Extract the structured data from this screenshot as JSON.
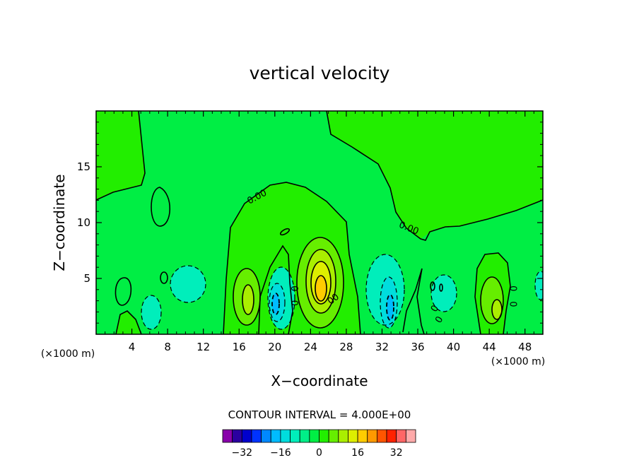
{
  "chart_data": {
    "type": "contour",
    "title": "vertical velocity",
    "xlabel": "X−coordinate",
    "ylabel": "Z−coordinate",
    "x_unit_left": "(×1000 m)",
    "x_unit_right": "(×1000 m)",
    "xlim": [
      0,
      50
    ],
    "ylim": [
      0,
      20
    ],
    "x_ticks": [
      4,
      8,
      12,
      16,
      20,
      24,
      28,
      32,
      36,
      40,
      44,
      48
    ],
    "x_tick_labels": [
      "4",
      "8",
      "12",
      "16",
      "20",
      "24",
      "28",
      "32",
      "36",
      "40",
      "44",
      "48"
    ],
    "y_ticks": [
      5,
      10,
      15
    ],
    "y_tick_labels": [
      "5",
      "10",
      "15"
    ],
    "contour_labels": [
      {
        "text": "0.00",
        "x": 18.0,
        "z": 12.3,
        "angle": -28
      },
      {
        "text": "0.00",
        "x": 35.0,
        "z": 9.5,
        "angle": 22
      },
      {
        "text": "0",
        "x": 22.3,
        "z": 4.1,
        "angle": -90
      },
      {
        "text": "0",
        "x": 22.3,
        "z": 2.8,
        "angle": -90
      },
      {
        "text": "0",
        "x": 26.3,
        "z": 3.0,
        "angle": -40
      },
      {
        "text": "0",
        "x": 26.8,
        "z": 3.3,
        "angle": -40
      },
      {
        "text": "0",
        "x": 37.9,
        "z": 2.3,
        "angle": -60
      },
      {
        "text": "0",
        "x": 38.4,
        "z": 1.3,
        "angle": -60
      },
      {
        "text": "0",
        "x": 46.8,
        "z": 4.1,
        "angle": -90
      },
      {
        "text": "0",
        "x": 46.8,
        "z": 2.7,
        "angle": -90
      }
    ],
    "contour_interval_text": "CONTOUR INTERVAL = 4.000E+00",
    "contour_interval": 4.0,
    "colorbar": {
      "levels": [
        -36,
        -32,
        -28,
        -24,
        -20,
        -16,
        -12,
        -8,
        -4,
        0,
        4,
        8,
        12,
        16,
        20,
        24,
        28,
        32,
        36
      ],
      "colors": [
        "#8800aa",
        "#2a00a0",
        "#0000cc",
        "#0033ff",
        "#0088ff",
        "#00bbff",
        "#00dddd",
        "#00eebb",
        "#00ee88",
        "#00ee44",
        "#22ee00",
        "#66ee00",
        "#aaee00",
        "#ddee00",
        "#ffcc00",
        "#ff9900",
        "#ff5500",
        "#ff2200",
        "#ff6666",
        "#ffaaaa"
      ],
      "tick_labels": [
        {
          "text": "−32",
          "value": -32
        },
        {
          "text": "−16",
          "value": -16
        },
        {
          "text": "0",
          "value": 0
        },
        {
          "text": "16",
          "value": 16
        },
        {
          "text": "32",
          "value": 32
        }
      ]
    },
    "features": [
      {
        "kind": "max",
        "x": 25.0,
        "z": 4.2,
        "value": 16
      },
      {
        "kind": "max",
        "x": 17.1,
        "z": 3.1,
        "value": 8
      },
      {
        "kind": "max",
        "x": 44.2,
        "z": 2.4,
        "value": 8
      },
      {
        "kind": "min",
        "x": 20.2,
        "z": 3.1,
        "value": -12
      },
      {
        "kind": "min",
        "x": 33.2,
        "z": 2.6,
        "value": -12
      },
      {
        "kind": "min",
        "x": 8.8,
        "z": 4.1,
        "value": -4
      },
      {
        "kind": "min",
        "x": 6.1,
        "z": 2.1,
        "value": -4
      }
    ]
  }
}
